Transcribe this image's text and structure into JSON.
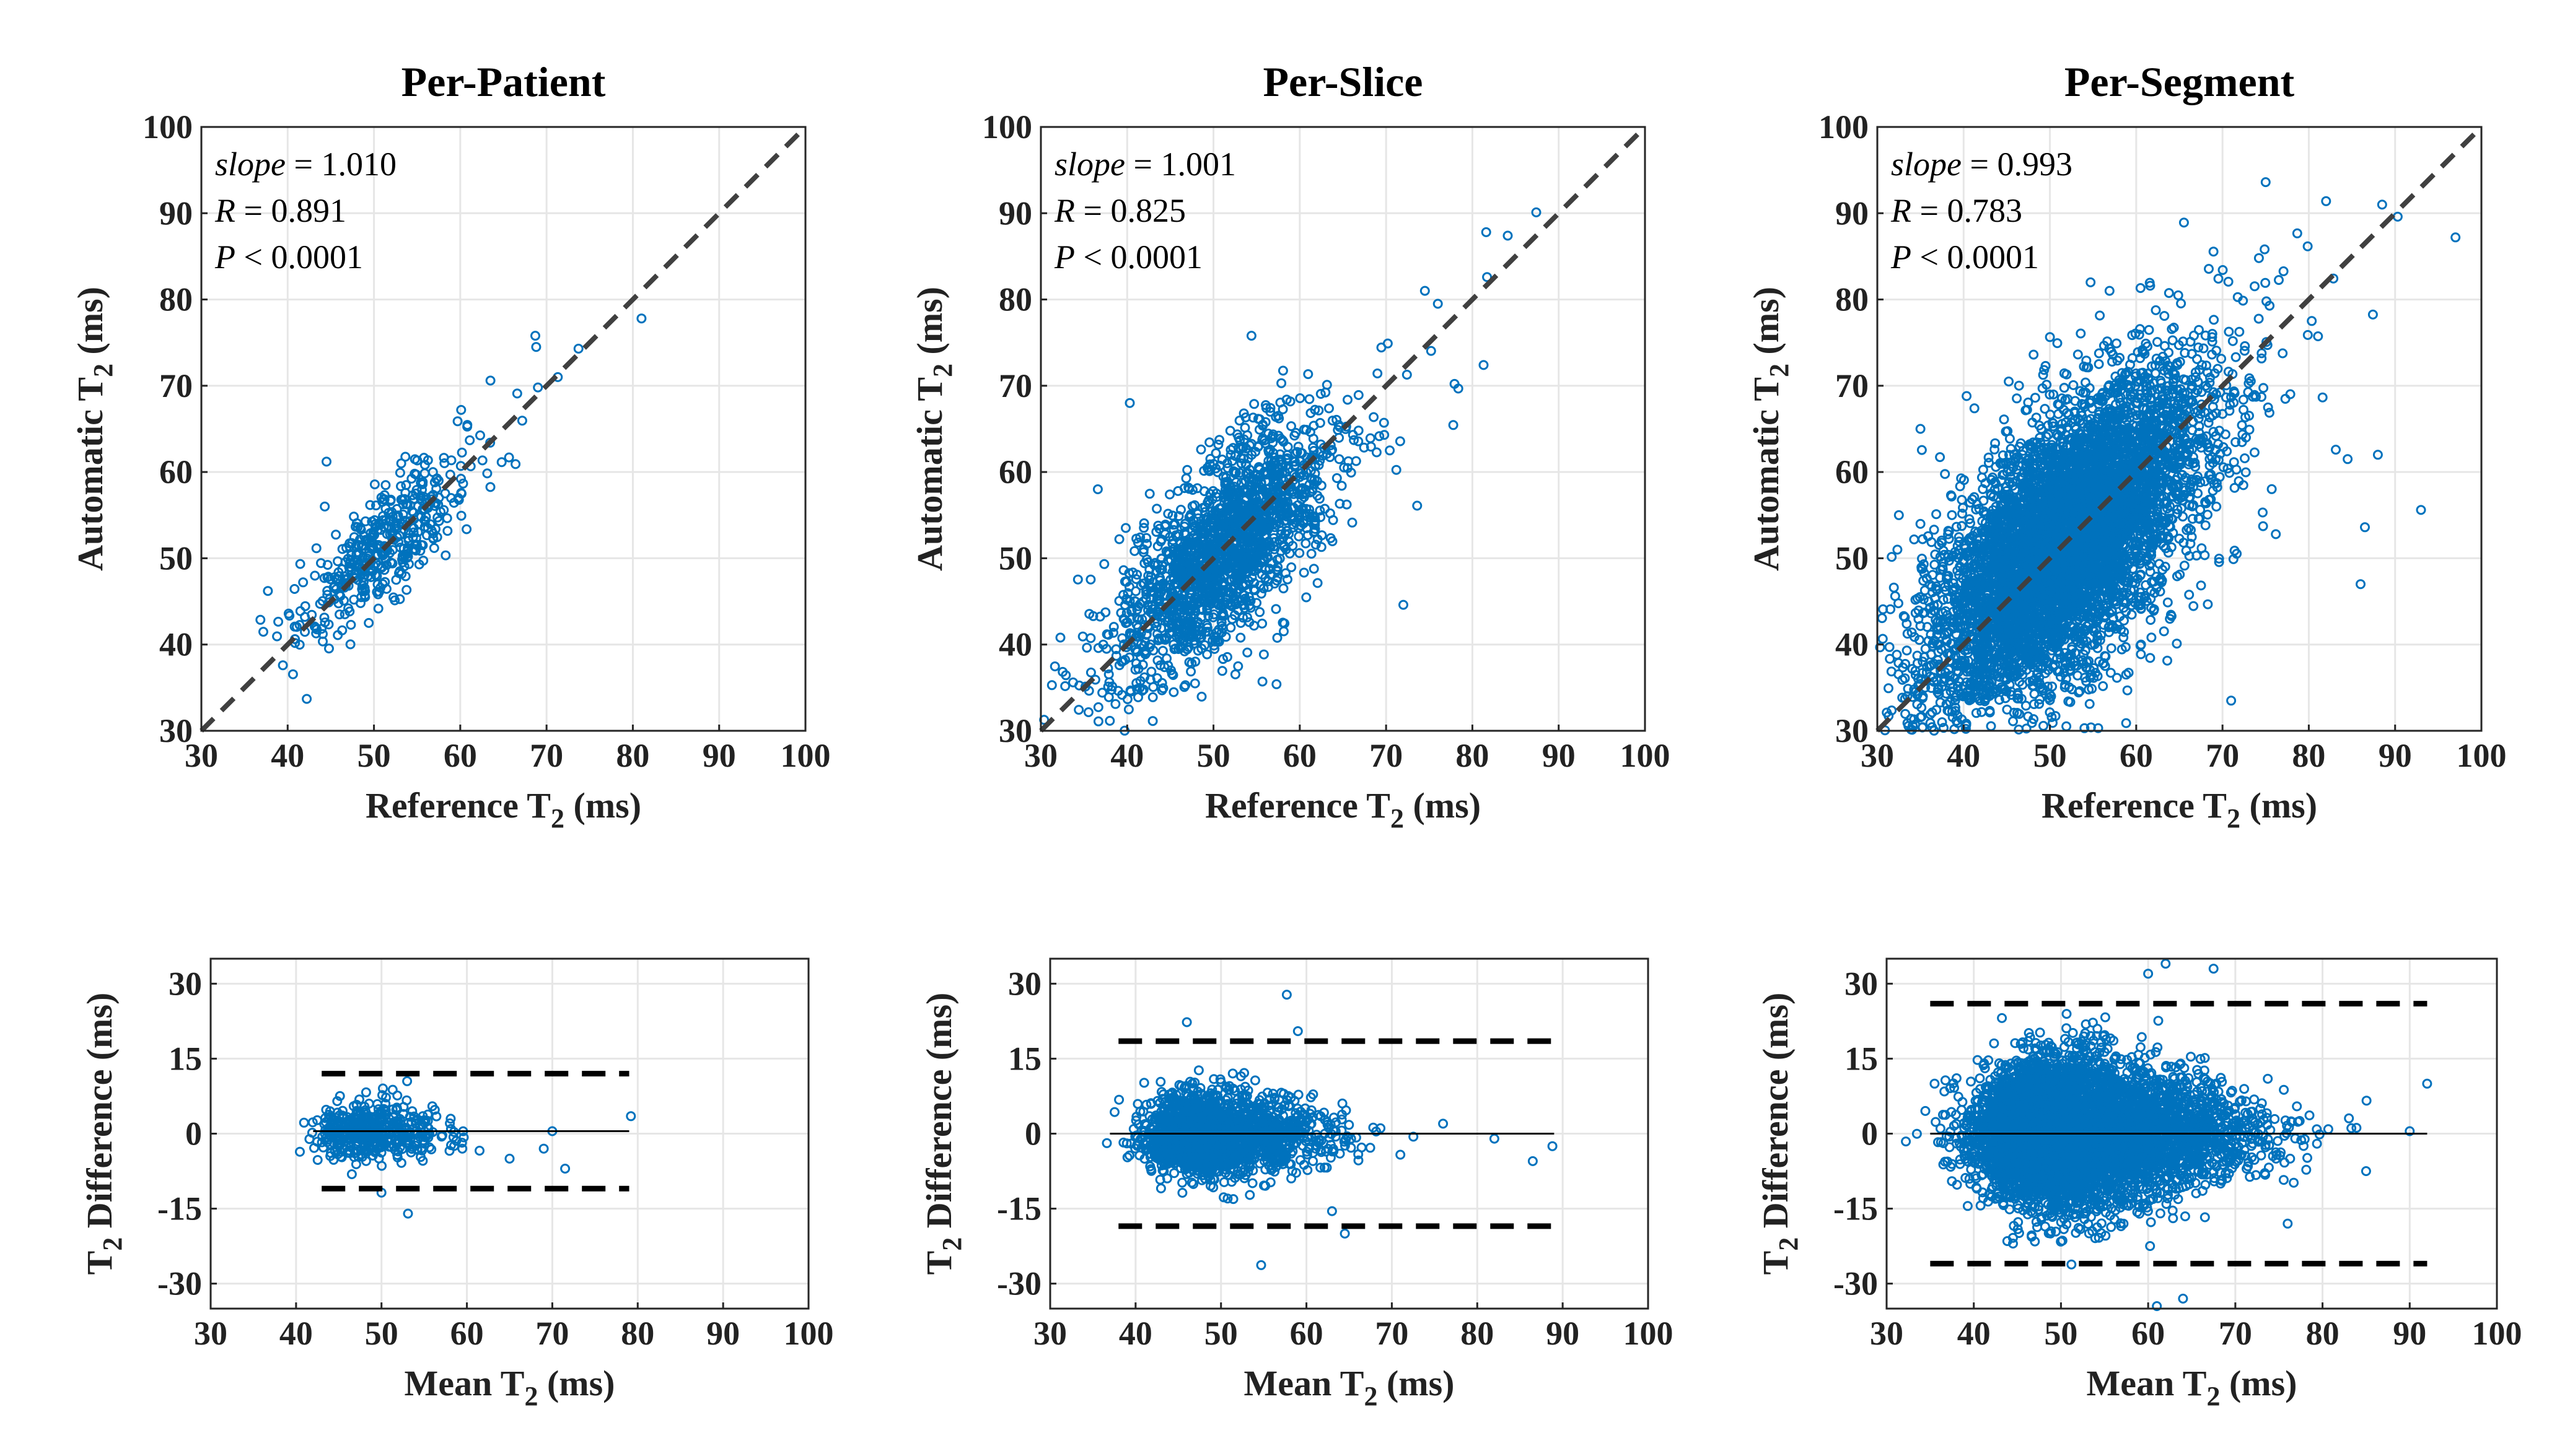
{
  "figure": {
    "colors": {
      "points": "#0072BD",
      "identity": "#404040",
      "limits": "#000000"
    }
  },
  "chart_data": [
    {
      "type": "scatter",
      "name": "per-patient-correlation",
      "title": "Per-Patient",
      "xlabel": "Reference T",
      "xlabel_sub": "2",
      "xlabel_unit": " (ms)",
      "ylabel": "Automatic T",
      "ylabel_sub": "2",
      "ylabel_unit": " (ms)",
      "xlim": [
        30,
        100
      ],
      "ylim": [
        30,
        100
      ],
      "xticks": [
        30,
        40,
        50,
        60,
        70,
        80,
        90,
        100
      ],
      "yticks": [
        30,
        40,
        50,
        60,
        70,
        80,
        90,
        100
      ],
      "grid": true,
      "identity_line": true,
      "stats": {
        "slope_label": "slope",
        "slope": "1.010",
        "R_label": "R",
        "R": "0.891",
        "P_label": "P",
        "P": "< 0.0001"
      },
      "point_cloud": {
        "count": 420,
        "center": [
          51,
          51
        ],
        "spread": [
          4.5,
          4.5
        ],
        "correlation": 0.89,
        "slope": 1.01,
        "extras": [
          [
            44.5,
            61.2
          ],
          [
            44.3,
            56.0
          ],
          [
            81.0,
            77.8
          ],
          [
            73.7,
            74.3
          ],
          [
            68.7,
            75.8
          ],
          [
            68.8,
            74.5
          ],
          [
            66.6,
            69.1
          ],
          [
            63.5,
            70.6
          ],
          [
            60.1,
            67.2
          ],
          [
            42.0,
            43.2
          ],
          [
            49.4,
            42.5
          ],
          [
            71.3,
            71.0
          ],
          [
            69.0,
            69.8
          ],
          [
            53.0,
            48.5
          ],
          [
            57.5,
            59.0
          ]
        ]
      }
    },
    {
      "type": "scatter",
      "name": "per-slice-correlation",
      "title": "Per-Slice",
      "xlabel": "Reference T",
      "xlabel_sub": "2",
      "xlabel_unit": " (ms)",
      "ylabel": "Automatic T",
      "ylabel_sub": "2",
      "ylabel_unit": " (ms)",
      "xlim": [
        30,
        100
      ],
      "ylim": [
        30,
        100
      ],
      "xticks": [
        30,
        40,
        50,
        60,
        70,
        80,
        90,
        100
      ],
      "yticks": [
        30,
        40,
        50,
        60,
        70,
        80,
        90,
        100
      ],
      "grid": true,
      "identity_line": true,
      "stats": {
        "slope_label": "slope",
        "slope": "1.001",
        "R_label": "R",
        "R": "0.825",
        "P_label": "P",
        "P": "< 0.0001"
      },
      "point_cloud": {
        "count": 1800,
        "center": [
          51,
          51
        ],
        "spread": [
          5.8,
          5.8
        ],
        "correlation": 0.82,
        "slope": 1.0,
        "extras": [
          [
            87.4,
            90.1
          ],
          [
            81.6,
            87.8
          ],
          [
            84.1,
            87.4
          ],
          [
            81.7,
            82.6
          ],
          [
            81.3,
            72.4
          ],
          [
            76.0,
            79.5
          ],
          [
            74.5,
            81.0
          ],
          [
            57.3,
            35.4
          ],
          [
            40.3,
            68.0
          ],
          [
            36.6,
            58.0
          ],
          [
            72.0,
            44.6
          ],
          [
            73.6,
            56.1
          ],
          [
            54.4,
            75.8
          ],
          [
            39.1,
            37.6
          ],
          [
            70.2,
            74.9
          ]
        ]
      }
    },
    {
      "type": "scatter",
      "name": "per-segment-correlation",
      "title": "Per-Segment",
      "xlabel": "Reference T",
      "xlabel_sub": "2",
      "xlabel_unit": " (ms)",
      "ylabel": "Automatic T",
      "ylabel_sub": "2",
      "ylabel_unit": " (ms)",
      "xlim": [
        30,
        100
      ],
      "ylim": [
        30,
        100
      ],
      "xticks": [
        30,
        40,
        50,
        60,
        70,
        80,
        90,
        100
      ],
      "yticks": [
        30,
        40,
        50,
        60,
        70,
        80,
        90,
        100
      ],
      "grid": true,
      "identity_line": true,
      "stats": {
        "slope_label": "slope",
        "slope": "0.993",
        "R_label": "R",
        "R": "0.783",
        "P_label": "P",
        "P": "< 0.0001"
      },
      "point_cloud": {
        "count": 6000,
        "center": [
          52,
          52
        ],
        "spread": [
          7.5,
          7.5
        ],
        "correlation": 0.78,
        "slope": 0.99,
        "extras": [
          [
            97.0,
            87.2
          ],
          [
            93.0,
            55.6
          ],
          [
            75.0,
            93.6
          ],
          [
            90.3,
            89.6
          ],
          [
            88.5,
            91.0
          ],
          [
            54.0,
            30.3
          ],
          [
            37.5,
            31.0
          ],
          [
            32.5,
            55.0
          ],
          [
            86.0,
            47.0
          ],
          [
            86.5,
            53.6
          ],
          [
            82.0,
            91.4
          ],
          [
            88.0,
            62.0
          ],
          [
            35.0,
            65.0
          ],
          [
            71.0,
            33.5
          ],
          [
            84.5,
            61.5
          ]
        ]
      }
    },
    {
      "type": "scatter",
      "name": "per-patient-bland-altman",
      "xlabel": "Mean T",
      "xlabel_sub": "2",
      "xlabel_unit": " (ms)",
      "ylabel": "T",
      "ylabel_sub": "2",
      "ylabel_rest": " Difference (ms)",
      "xlim": [
        30,
        100
      ],
      "ylim": [
        -35,
        35
      ],
      "xticks": [
        30,
        40,
        50,
        60,
        70,
        80,
        90,
        100
      ],
      "yticks": [
        -30,
        -15,
        0,
        15,
        30
      ],
      "grid": true,
      "bias": 0.5,
      "bias_range": [
        42,
        79
      ],
      "limits_of_agreement": [
        12.0,
        -11.0
      ],
      "loa_range": [
        43,
        79
      ],
      "point_cloud": {
        "count": 420,
        "center": [
          51,
          0.5
        ],
        "spread": [
          3.2,
          3.0
        ],
        "extras": [
          [
            53.1,
            -16.0
          ],
          [
            79.2,
            3.5
          ],
          [
            71.5,
            -7.0
          ],
          [
            53.0,
            10.5
          ],
          [
            50.0,
            -11.8
          ],
          [
            70.0,
            0.5
          ],
          [
            65.0,
            -5.0
          ],
          [
            69.0,
            -3.0
          ]
        ]
      }
    },
    {
      "type": "scatter",
      "name": "per-slice-bland-altman",
      "xlabel": "Mean T",
      "xlabel_sub": "2",
      "xlabel_unit": " (ms)",
      "ylabel": "T",
      "ylabel_sub": "2",
      "ylabel_rest": " Difference (ms)",
      "xlim": [
        30,
        100
      ],
      "ylim": [
        -35,
        35
      ],
      "xticks": [
        30,
        40,
        50,
        60,
        70,
        80,
        90,
        100
      ],
      "yticks": [
        -30,
        -15,
        0,
        15,
        30
      ],
      "grid": true,
      "bias": 0.0,
      "bias_range": [
        37,
        89
      ],
      "limits_of_agreement": [
        18.5,
        -18.5
      ],
      "loa_range": [
        38,
        89
      ],
      "point_cloud": {
        "count": 1800,
        "center": [
          51,
          0
        ],
        "spread": [
          4.8,
          4.5
        ],
        "extras": [
          [
            57.7,
            27.8
          ],
          [
            54.7,
            -26.3
          ],
          [
            88.8,
            -2.5
          ],
          [
            82.0,
            -1.0
          ],
          [
            46.0,
            22.3
          ],
          [
            59.0,
            20.5
          ],
          [
            64.5,
            -20.0
          ],
          [
            76.0,
            2.0
          ],
          [
            86.5,
            -5.5
          ],
          [
            63.0,
            -15.5
          ]
        ]
      }
    },
    {
      "type": "scatter",
      "name": "per-segment-bland-altman",
      "xlabel": "Mean T",
      "xlabel_sub": "2",
      "xlabel_unit": " (ms)",
      "ylabel": "T",
      "ylabel_sub": "2",
      "ylabel_rest": " Difference (ms)",
      "xlim": [
        30,
        100
      ],
      "ylim": [
        -35,
        35
      ],
      "xticks": [
        30,
        40,
        50,
        60,
        70,
        80,
        90,
        100
      ],
      "yticks": [
        -30,
        -15,
        0,
        15,
        30
      ],
      "grid": true,
      "bias": 0.0,
      "bias_range": [
        35,
        92
      ],
      "limits_of_agreement": [
        26.0,
        -26.0
      ],
      "loa_range": [
        35,
        92
      ],
      "point_cloud": {
        "count": 6000,
        "center": [
          53,
          0
        ],
        "spread": [
          6.8,
          8.0
        ],
        "extras": [
          [
            62.0,
            34.0
          ],
          [
            67.5,
            33.0
          ],
          [
            60.0,
            32.0
          ],
          [
            61.0,
            -34.5
          ],
          [
            92.0,
            10.0
          ],
          [
            90.0,
            0.5
          ],
          [
            85.0,
            -7.5
          ],
          [
            76.0,
            -18.0
          ],
          [
            35.5,
            10.0
          ],
          [
            64.0,
            -33.0
          ]
        ]
      }
    }
  ]
}
